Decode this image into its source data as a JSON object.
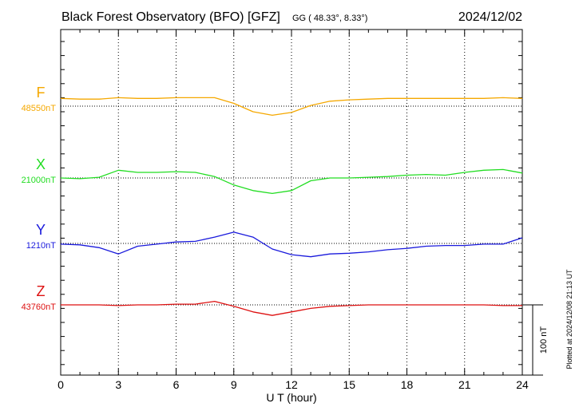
{
  "header": {
    "title": "Black Forest Observatory (BFO)  [GFZ]",
    "coords": "GG ( 48.33°,   8.33°)",
    "date": "2024/12/02"
  },
  "side_note": "Plotted at 2024/12/08 21:13 UT",
  "scale_label": "100 nT",
  "chart_data": {
    "type": "line",
    "xlabel": "U T (hour)",
    "x_ticks": [
      "0",
      "3",
      "6",
      "9",
      "12",
      "15",
      "18",
      "21",
      "24"
    ],
    "xlim": [
      0,
      24
    ],
    "y_units": "nT",
    "scale_bar_nT": 100,
    "grid": true,
    "series": [
      {
        "name": "F",
        "baseline_label": "48550nT",
        "baseline_nT": 48550,
        "color": "#f5a800",
        "x": [
          0,
          1,
          2,
          3,
          4,
          5,
          6,
          7,
          8,
          9,
          10,
          11,
          12,
          13,
          14,
          15,
          16,
          17,
          18,
          19,
          20,
          21,
          22,
          23,
          24
        ],
        "values": [
          48561,
          48560,
          48560,
          48562,
          48561,
          48561,
          48562,
          48562,
          48562,
          48554,
          48542,
          48537,
          48541,
          48551,
          48557,
          48559,
          48560,
          48561,
          48561,
          48561,
          48561,
          48561,
          48561,
          48562,
          48561
        ]
      },
      {
        "name": "X",
        "baseline_label": "21000nT",
        "baseline_nT": 21000,
        "color": "#22dd22",
        "x": [
          0,
          1,
          2,
          3,
          4,
          5,
          6,
          7,
          8,
          9,
          10,
          11,
          12,
          13,
          14,
          15,
          16,
          17,
          18,
          19,
          20,
          21,
          22,
          23,
          24
        ],
        "values": [
          21000,
          20999,
          21001,
          21011,
          21008,
          21008,
          21009,
          21008,
          21002,
          20990,
          20982,
          20978,
          20982,
          20996,
          21000,
          21000,
          21001,
          21002,
          21004,
          21005,
          21004,
          21008,
          21011,
          21012,
          21007
        ]
      },
      {
        "name": "Y",
        "baseline_label": "1210nT",
        "baseline_nT": 1210,
        "color": "#1a1adc",
        "x": [
          0,
          1,
          2,
          3,
          4,
          5,
          6,
          7,
          8,
          9,
          10,
          11,
          12,
          13,
          14,
          15,
          16,
          17,
          18,
          19,
          20,
          21,
          22,
          23,
          24
        ],
        "values": [
          1209,
          1208,
          1204,
          1195,
          1206,
          1209,
          1212,
          1213,
          1219,
          1226,
          1219,
          1202,
          1194,
          1191,
          1195,
          1196,
          1198,
          1201,
          1203,
          1206,
          1207,
          1207,
          1209,
          1209,
          1218
        ]
      },
      {
        "name": "Z",
        "baseline_label": "43760nT",
        "baseline_nT": 43760,
        "color": "#dd1111",
        "x": [
          0,
          1,
          2,
          3,
          4,
          5,
          6,
          7,
          8,
          9,
          10,
          11,
          12,
          13,
          14,
          15,
          16,
          17,
          18,
          19,
          20,
          21,
          22,
          23,
          24
        ],
        "values": [
          43760,
          43760,
          43760,
          43759,
          43760,
          43760,
          43761,
          43761,
          43765,
          43758,
          43750,
          43745,
          43750,
          43755,
          43758,
          43759,
          43760,
          43760,
          43760,
          43760,
          43760,
          43760,
          43760,
          43759,
          43759
        ]
      }
    ]
  }
}
